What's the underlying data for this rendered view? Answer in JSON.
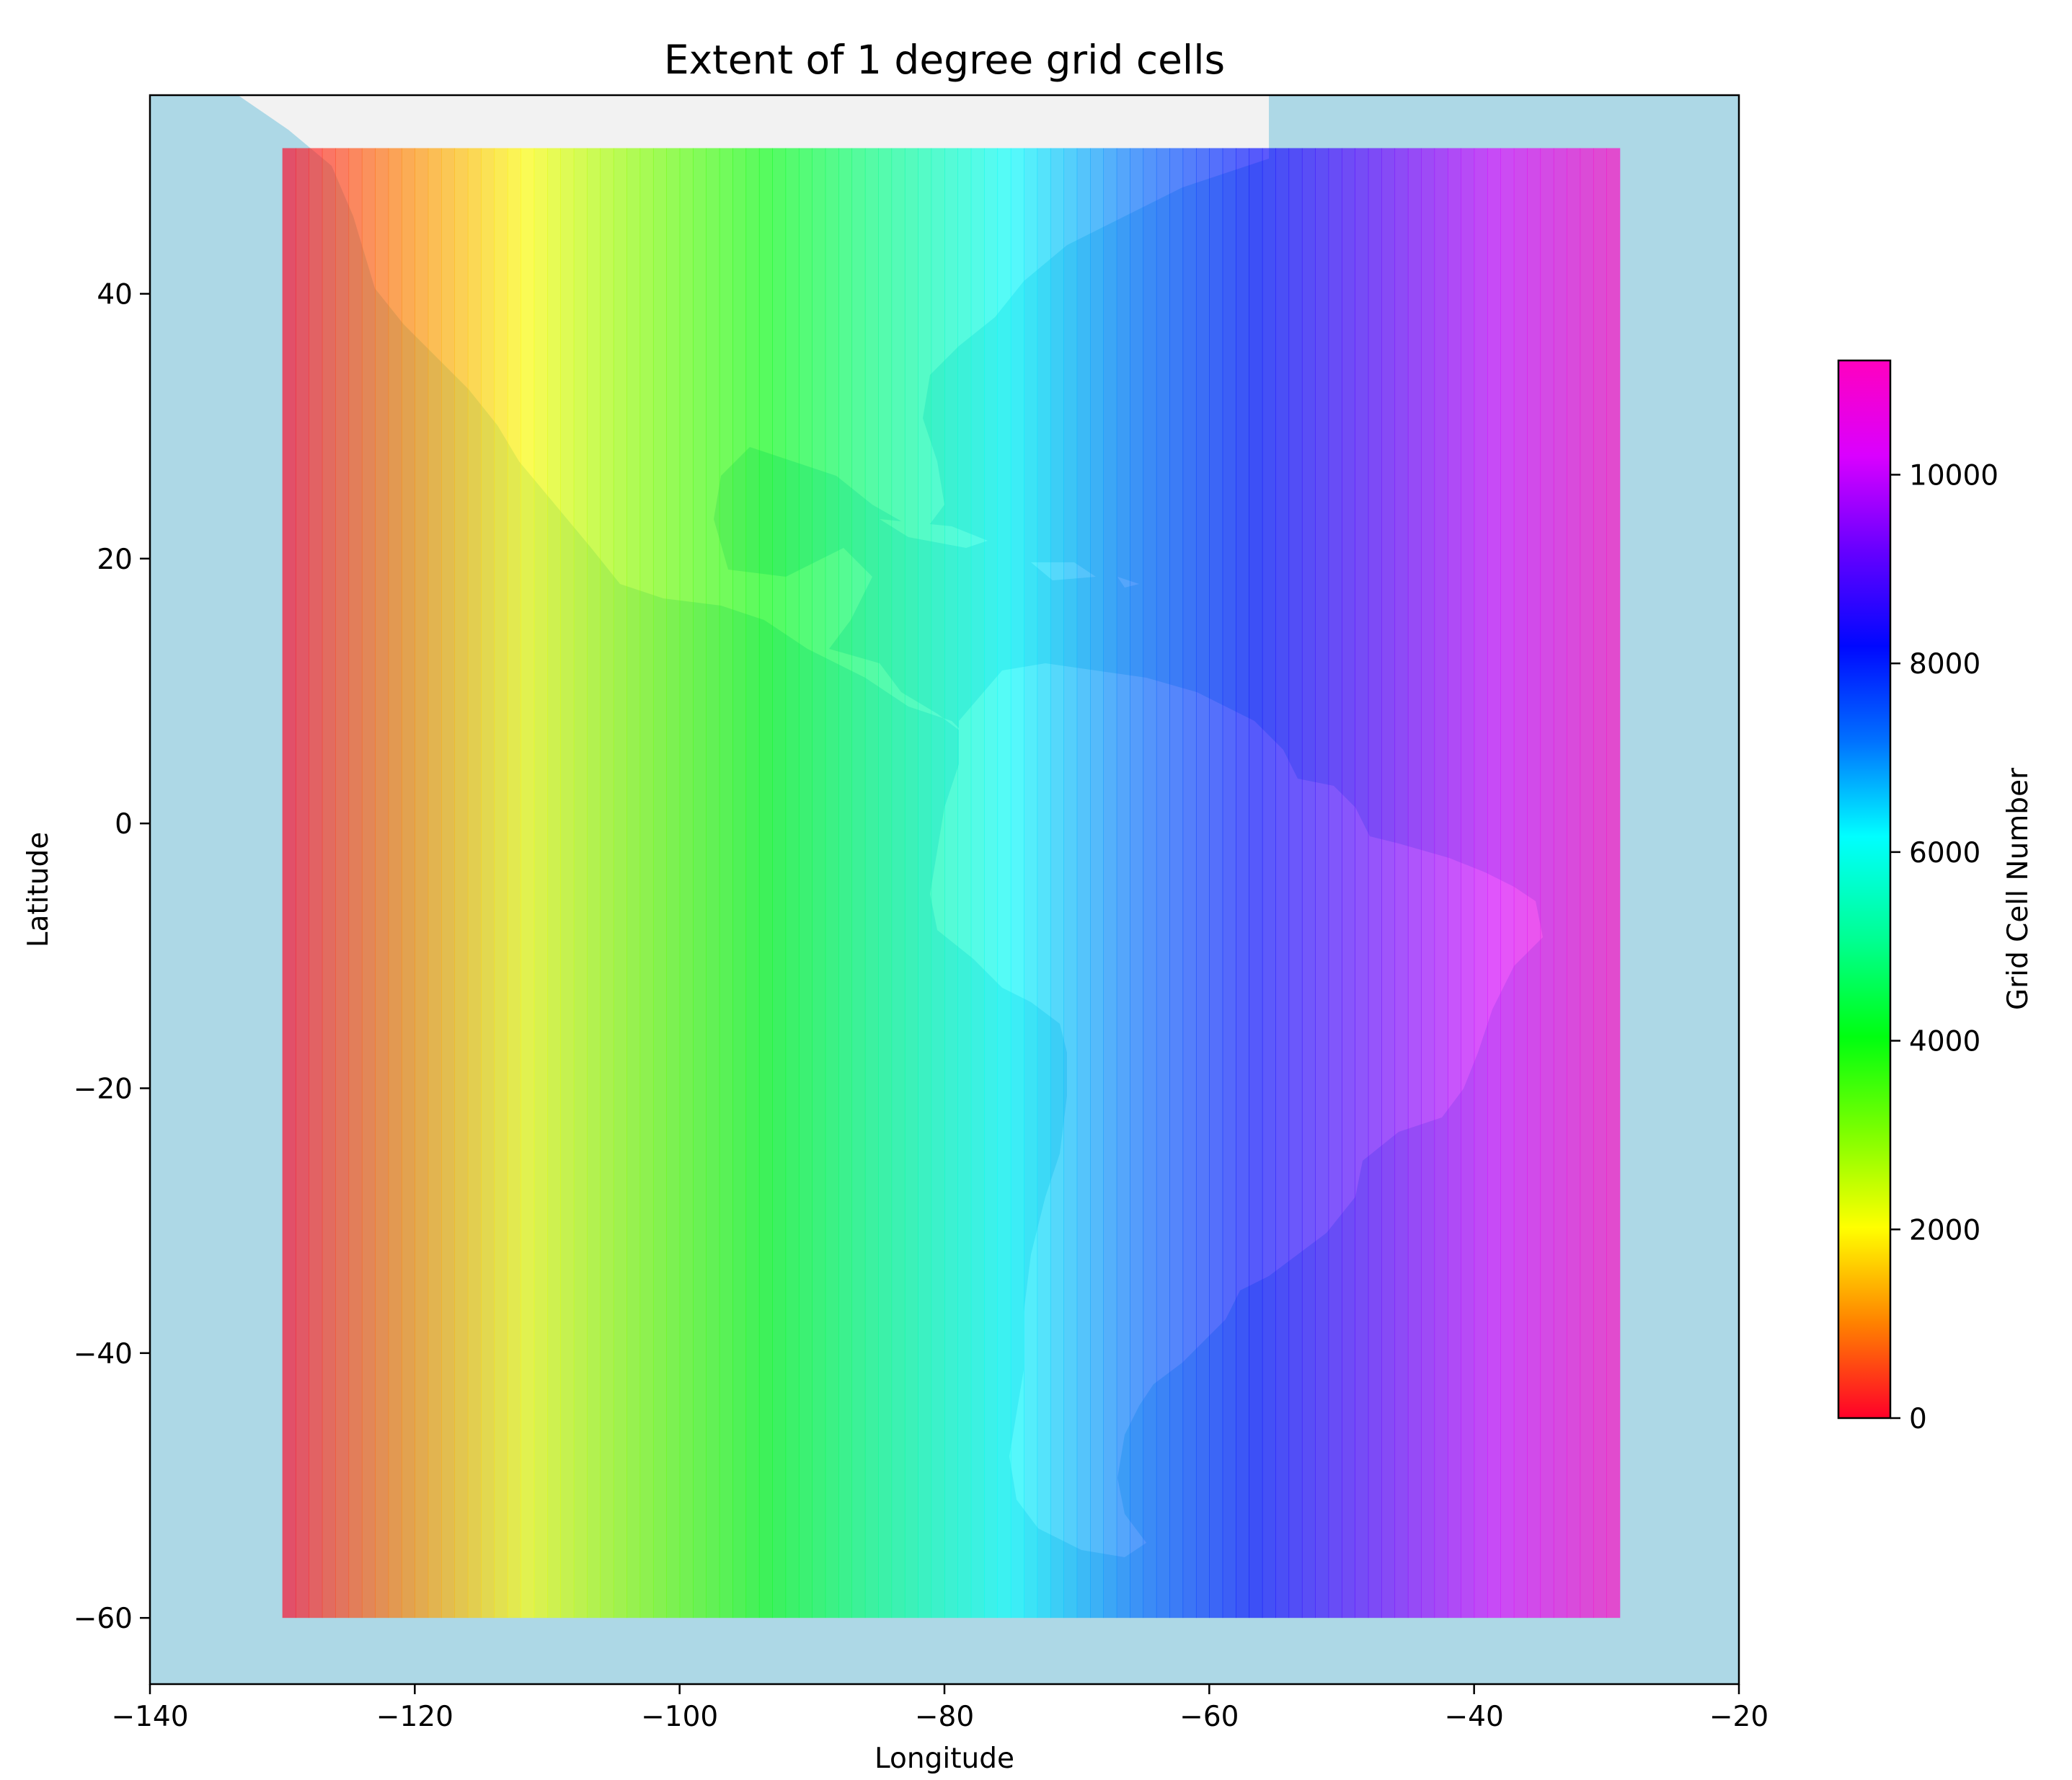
{
  "chart_data": {
    "type": "heatmap",
    "title": "Extent of 1 degree grid cells",
    "xlabel": "Longitude",
    "ylabel": "Latitude",
    "xlim": [
      -140,
      -20
    ],
    "ylim": [
      -65,
      55
    ],
    "xticks": [
      -140,
      -120,
      -100,
      -80,
      -60,
      -40,
      -20
    ],
    "yticks": [
      -60,
      -40,
      -20,
      0,
      20,
      40
    ],
    "xtick_labels": [
      "−140",
      "−120",
      "−100",
      "−80",
      "−60",
      "−40",
      "−20"
    ],
    "ytick_labels": [
      "−60",
      "−40",
      "−20",
      "0",
      "20",
      "40"
    ],
    "grid": false,
    "colormap": "gist_rainbow",
    "colormap_stops": [
      "#ff0029",
      "#ff8200",
      "#ffff00",
      "#7dff00",
      "#00ff10",
      "#00ff8f",
      "#00ffff",
      "#0071ff",
      "#0008ff",
      "#6600ff",
      "#da00ff",
      "#ff00bf"
    ],
    "cell_alpha": 0.65,
    "grid_extent": {
      "lon_min": -130,
      "lon_max": -29,
      "lat_min": -60,
      "lat_max": 51
    },
    "cell_size_degrees": 1,
    "numbering": "column-major: west to east, north to south within each column",
    "value_range": [
      0,
      11211
    ],
    "background": {
      "ocean": "#add8e6",
      "land": "#f2f2f2"
    },
    "colorbar": {
      "label": "Grid Cell Number",
      "min": 0,
      "max": 11211,
      "ticks": [
        0,
        2000,
        4000,
        6000,
        8000,
        10000
      ],
      "tick_labels": [
        "0",
        "2000",
        "4000",
        "6000",
        "8000",
        "10000"
      ],
      "position": "right"
    }
  }
}
